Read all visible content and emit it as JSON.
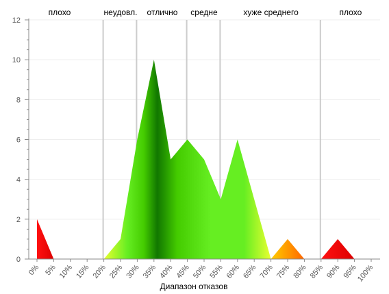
{
  "chart_data": {
    "type": "area",
    "xlabel": "Диапазон отказов",
    "ylabel": "",
    "ylim": [
      0,
      12
    ],
    "yticks": [
      0,
      2,
      4,
      6,
      8,
      10,
      12
    ],
    "categories": [
      "0%",
      "5%",
      "10%",
      "15%",
      "20%",
      "25%",
      "30%",
      "35%",
      "40%",
      "45%",
      "50%",
      "55%",
      "60%",
      "65%",
      "70%",
      "75%",
      "80%",
      "85%",
      "90%",
      "95%",
      "100%"
    ],
    "series": [
      {
        "x": [
          0,
          5,
          10,
          15,
          20,
          25,
          30,
          35,
          40,
          45,
          50,
          55,
          60,
          65,
          70,
          75,
          80,
          85,
          90,
          95,
          100
        ],
        "values": [
          2,
          0,
          0,
          0,
          0,
          1,
          6,
          10,
          5,
          6,
          5,
          3,
          6,
          3,
          0,
          1,
          0,
          0,
          1,
          0,
          0
        ]
      }
    ],
    "bands": [
      {
        "label": "плохо",
        "from": 0,
        "to": 20
      },
      {
        "label": "неудовл.",
        "from": 20,
        "to": 30
      },
      {
        "label": "отлично",
        "from": 30,
        "to": 45
      },
      {
        "label": "средне",
        "from": 45,
        "to": 55
      },
      {
        "label": "хуже среднего",
        "from": 55,
        "to": 85
      },
      {
        "label": "плохо",
        "from": 85,
        "to": 100
      }
    ],
    "colors": {
      "red": "#ee0000",
      "orange": "#ff8800",
      "yellow": "#e8ff30",
      "light_green": "#66ee22",
      "green": "#44cc00",
      "dark_green": "#117700",
      "band_line": "#cccccc",
      "grid": "#eeeeee"
    },
    "grid": true,
    "legend": "none"
  }
}
